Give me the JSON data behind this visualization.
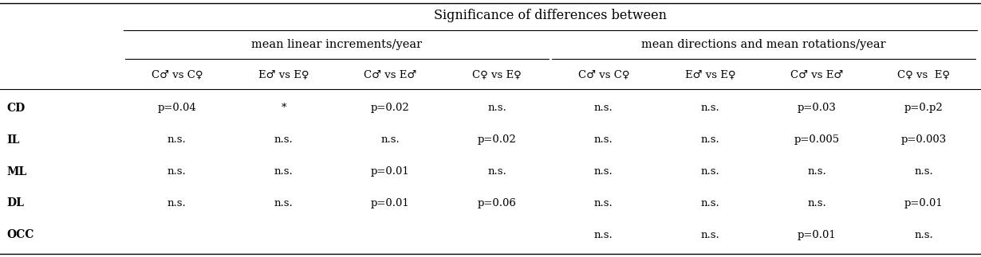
{
  "title": "Significance of differences between",
  "subheader_left": "mean linear increments/year",
  "subheader_right": "mean directions and mean rotations/year",
  "col_headers": [
    "C♂ vs C♀",
    "E♂ vs E♀",
    "C♂ vs E♂",
    "C♀ vs E♀",
    "C♂ vs C♀",
    "E♂ vs E♀",
    "C♂ vs E♂",
    "C♀ vs  E♀"
  ],
  "row_labels": [
    "CD",
    "IL",
    "ML",
    "DL",
    "OCC"
  ],
  "table_data": [
    [
      "p=0.04",
      "*",
      "p=0.02",
      "n.s.",
      "n.s.",
      "n.s.",
      "p=0.03",
      "p=0.p2"
    ],
    [
      "n.s.",
      "n.s.",
      "n.s.",
      "p=0.02",
      "n.s.",
      "n.s.",
      "p=0.005",
      "p=0.003"
    ],
    [
      "n.s.",
      "n.s.",
      "p=0.01",
      "n.s.",
      "n.s.",
      "n.s.",
      "n.s.",
      "n.s."
    ],
    [
      "n.s.",
      "n.s.",
      "p=0.01",
      "p=0.06",
      "n.s.",
      "n.s.",
      "n.s.",
      "p=0.01"
    ],
    [
      "",
      "",
      "",
      "",
      "n.s.",
      "n.s.",
      "p=0.01",
      "n.s."
    ]
  ],
  "bg_color": "#ffffff",
  "text_color": "#000000",
  "font_size": 9.5,
  "header_font_size": 10.5,
  "title_font_size": 11.5,
  "fig_width": 12.3,
  "fig_height": 3.23,
  "dpi": 100
}
